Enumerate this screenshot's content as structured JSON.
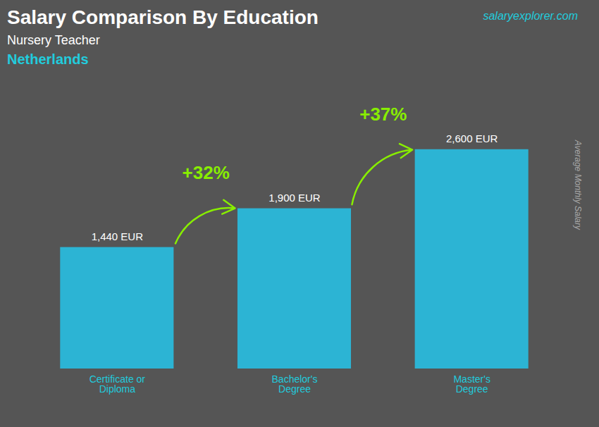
{
  "chart_data": {
    "type": "bar",
    "title": "Salary Comparison By Education",
    "subtitle": [
      "Nursery Teacher",
      "Netherlands"
    ],
    "ylabel": "Average Monthly Salary",
    "categories": [
      "Certificate or\nDiploma",
      "Bachelor's\nDegree",
      "Master's\nDegree"
    ],
    "values": [
      1440,
      1900,
      2600
    ],
    "value_labels": [
      "1,440 EUR",
      "1,900 EUR",
      "2,600 EUR"
    ],
    "color": "#29bde0",
    "ylim": [
      0,
      3300
    ],
    "grid": false,
    "data_labels": true,
    "tick_labels": "x",
    "annotations": [
      {
        "text": "salaryexplorer.com"
      },
      {
        "text": "+32%",
        "from": "Certificate or\nDiploma",
        "to": "Bachelor's\nDegree",
        "color": "#88ee00"
      },
      {
        "text": "+37%",
        "from": "Bachelor's\nDegree",
        "to": "Master's\nDegree",
        "color": "#88ee00"
      }
    ]
  }
}
